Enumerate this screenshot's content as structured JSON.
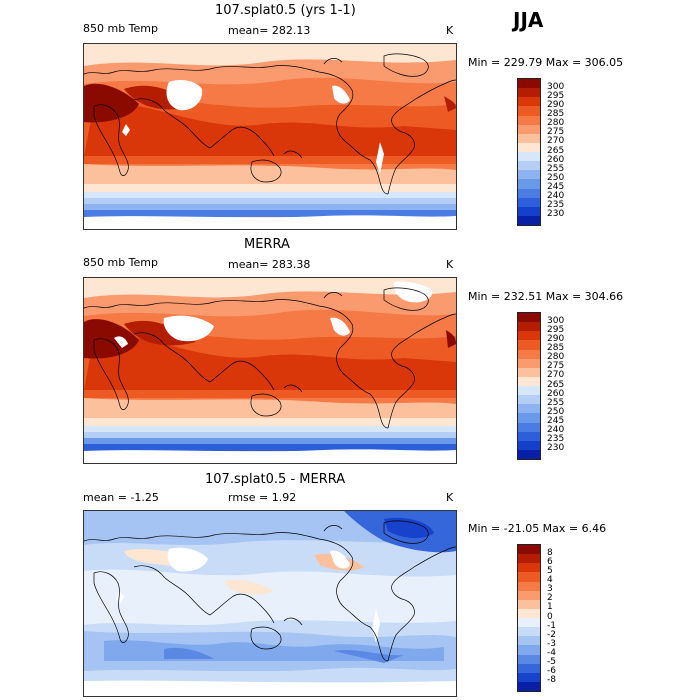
{
  "season": "JJA",
  "panels": [
    {
      "title": "107.splat0.5 (yrs 1-1)",
      "left_label": "850 mb Temp",
      "center_label": "mean= 282.13",
      "unit": "K",
      "minmax": "Min = 229.79 Max = 306.05",
      "colorbar": {
        "labels": [
          "300",
          "295",
          "290",
          "285",
          "280",
          "275",
          "270",
          "265",
          "260",
          "255",
          "250",
          "245",
          "240",
          "235",
          "230"
        ],
        "colors": [
          "#8b0a00",
          "#b51d00",
          "#d9360a",
          "#ee5a23",
          "#f57a46",
          "#fa9a6f",
          "#fcc09c",
          "#fde6d2",
          "#d6e6fb",
          "#b3cff6",
          "#8db4f0",
          "#6a99ea",
          "#4a7ce3",
          "#2d5fdb",
          "#1440cc",
          "#0a1fa8"
        ]
      }
    },
    {
      "title": "MERRA",
      "left_label": "850 mb Temp",
      "center_label": "mean= 283.38",
      "unit": "K",
      "minmax": "Min = 232.51 Max = 304.66",
      "colorbar": {
        "labels": [
          "300",
          "295",
          "290",
          "285",
          "280",
          "275",
          "270",
          "265",
          "260",
          "255",
          "250",
          "245",
          "240",
          "235",
          "230"
        ],
        "colors": [
          "#8b0a00",
          "#b51d00",
          "#d9360a",
          "#ee5a23",
          "#f57a46",
          "#fa9a6f",
          "#fcc09c",
          "#fde6d2",
          "#d6e6fb",
          "#b3cff6",
          "#8db4f0",
          "#6a99ea",
          "#4a7ce3",
          "#2d5fdb",
          "#1440cc",
          "#0a1fa8"
        ]
      }
    },
    {
      "title": "107.splat0.5 - MERRA",
      "left_label": "mean =   -1.25",
      "center_label": "rmse =    1.92",
      "unit": "K",
      "minmax": "Min = -21.05 Max =    6.46",
      "colorbar": {
        "labels": [
          "8",
          "6",
          "5",
          "4",
          "3",
          "2",
          "1",
          "0",
          "-1",
          "-2",
          "-3",
          "-4",
          "-5",
          "-6",
          "-8"
        ],
        "colors": [
          "#8b0a00",
          "#b51d00",
          "#d9360a",
          "#ee5a23",
          "#f57a46",
          "#fa9a6f",
          "#fcc09c",
          "#fde6d2",
          "#e8f0fc",
          "#c8dcf8",
          "#a6c4f3",
          "#80a8ec",
          "#5a88e4",
          "#3566da",
          "#1742cc",
          "#0a1fa8"
        ]
      }
    }
  ]
}
